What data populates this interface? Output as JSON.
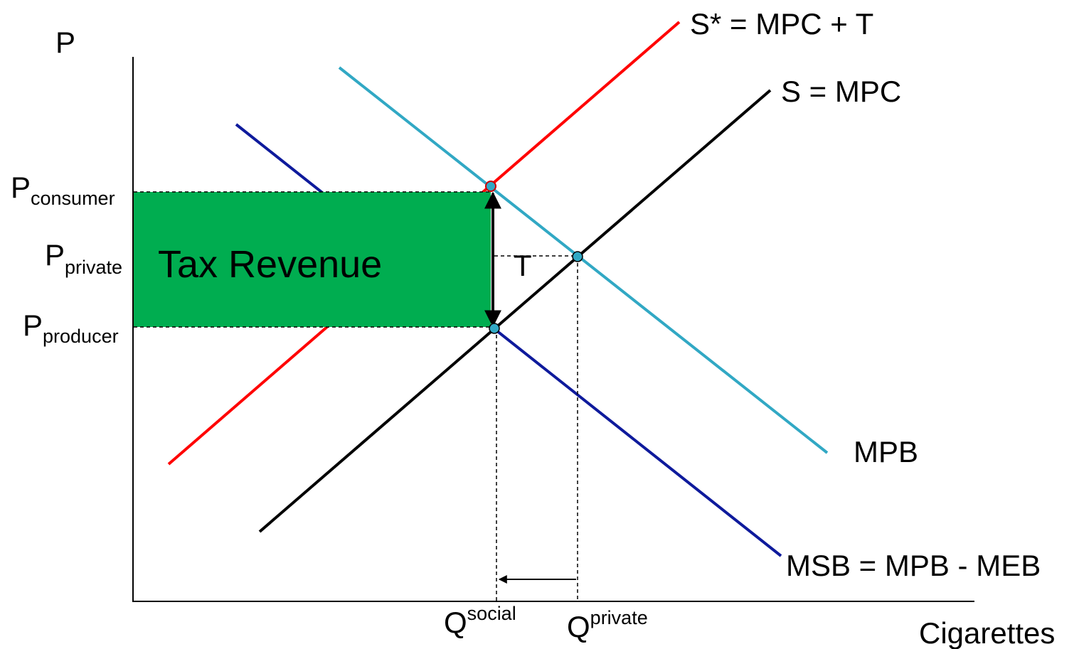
{
  "axes": {
    "y_label": "P",
    "x_label": "Cigarettes"
  },
  "curves": [
    {
      "label": "S* = MPC + T"
    },
    {
      "label": "S = MPC"
    },
    {
      "label": "MPB"
    },
    {
      "label": "MSB = MPB - MEB"
    }
  ],
  "price_labels": [
    {
      "main": "P",
      "sub": "consumer"
    },
    {
      "main": "P",
      "sub": "private"
    },
    {
      "main": "P",
      "sub": "producer"
    }
  ],
  "quantity_labels": [
    {
      "main": "Q",
      "sup": "social"
    },
    {
      "main": "Q",
      "sup": "private"
    }
  ],
  "area_label": "Tax Revenue",
  "tax_label": "T"
}
